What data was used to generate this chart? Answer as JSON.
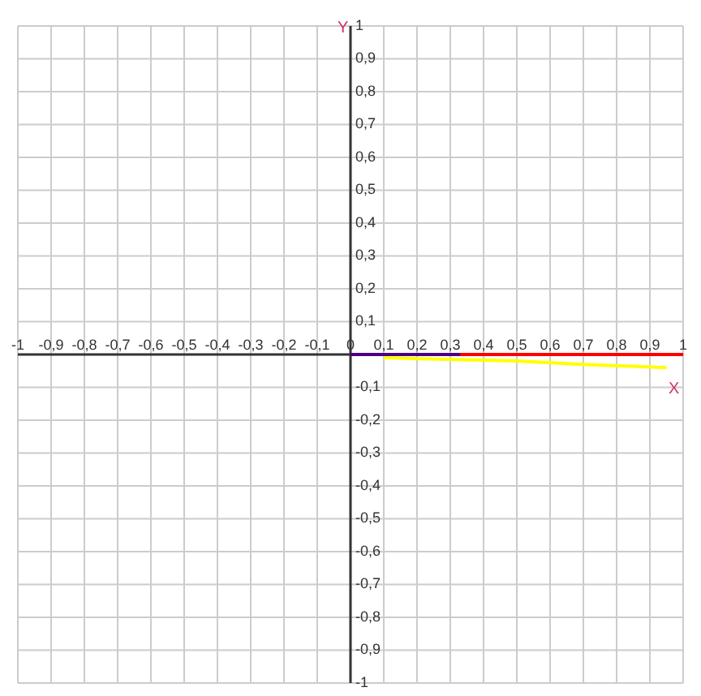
{
  "chart_data": {
    "type": "line",
    "xlabel": "X",
    "ylabel": "Y",
    "xlim": [
      -1,
      1
    ],
    "ylim": [
      -1,
      1
    ],
    "xticks": [
      {
        "value": -1,
        "label": "-1"
      },
      {
        "value": -0.9,
        "label": "-0,9"
      },
      {
        "value": -0.8,
        "label": "-0,8"
      },
      {
        "value": -0.7,
        "label": "-0,7"
      },
      {
        "value": -0.6,
        "label": "-0,6"
      },
      {
        "value": -0.5,
        "label": "-0,5"
      },
      {
        "value": -0.4,
        "label": "-0,4"
      },
      {
        "value": -0.3,
        "label": "-0,3"
      },
      {
        "value": -0.2,
        "label": "-0,2"
      },
      {
        "value": -0.1,
        "label": "-0,1"
      },
      {
        "value": 0,
        "label": "0"
      },
      {
        "value": 0.1,
        "label": "0,1"
      },
      {
        "value": 0.2,
        "label": "0,2"
      },
      {
        "value": 0.3,
        "label": "0,3"
      },
      {
        "value": 0.4,
        "label": "0,4"
      },
      {
        "value": 0.5,
        "label": "0,5"
      },
      {
        "value": 0.6,
        "label": "0,6"
      },
      {
        "value": 0.7,
        "label": "0,7"
      },
      {
        "value": 0.8,
        "label": "0,8"
      },
      {
        "value": 0.9,
        "label": "0,9"
      },
      {
        "value": 1,
        "label": "1"
      }
    ],
    "yticks": [
      {
        "value": -1,
        "label": "-1"
      },
      {
        "value": -0.9,
        "label": "-0,9"
      },
      {
        "value": -0.8,
        "label": "-0,8"
      },
      {
        "value": -0.7,
        "label": "-0,7"
      },
      {
        "value": -0.6,
        "label": "-0,6"
      },
      {
        "value": -0.5,
        "label": "-0,5"
      },
      {
        "value": -0.4,
        "label": "-0,4"
      },
      {
        "value": -0.3,
        "label": "-0,3"
      },
      {
        "value": -0.2,
        "label": "-0,2"
      },
      {
        "value": -0.1,
        "label": "-0,1"
      },
      {
        "value": 0.1,
        "label": "0,1"
      },
      {
        "value": 0.2,
        "label": "0,2"
      },
      {
        "value": 0.3,
        "label": "0,3"
      },
      {
        "value": 0.4,
        "label": "0,4"
      },
      {
        "value": 0.5,
        "label": "0,5"
      },
      {
        "value": 0.6,
        "label": "0,6"
      },
      {
        "value": 0.7,
        "label": "0,7"
      },
      {
        "value": 0.8,
        "label": "0,8"
      },
      {
        "value": 0.9,
        "label": "0,9"
      },
      {
        "value": 1,
        "label": "1"
      }
    ],
    "grid": true,
    "marker": "none",
    "line_style": "solid",
    "series": [
      {
        "color": "#ff0000",
        "x": [
          0,
          1
        ],
        "values": [
          0,
          0
        ]
      },
      {
        "color": "#4b0082",
        "x": [
          0,
          0.33
        ],
        "values": [
          0,
          0
        ]
      },
      {
        "color": "#ffff00",
        "x": [
          0.1,
          0.5,
          0.7,
          0.95
        ],
        "values": [
          -0.01,
          -0.02,
          -0.03,
          -0.04
        ]
      }
    ]
  }
}
